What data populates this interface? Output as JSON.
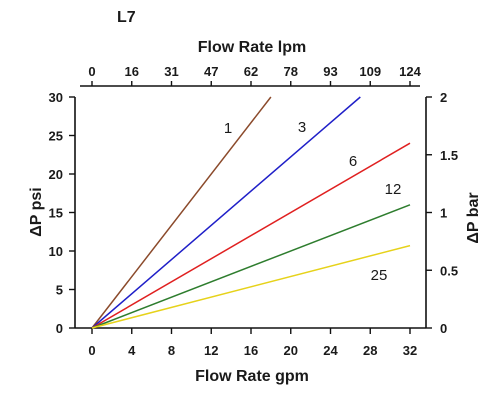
{
  "chart_data": {
    "type": "line",
    "title": "L7",
    "xlabel": "Flow Rate gpm",
    "ylabel": "ΔP psi",
    "x2label": "Flow Rate lpm",
    "y2label": "ΔP bar",
    "xlim": [
      0,
      32
    ],
    "ylim": [
      0,
      30
    ],
    "x2lim": [
      0,
      124
    ],
    "y2lim": [
      0,
      2.05
    ],
    "xticks": [
      "0",
      "4",
      "8",
      "12",
      "16",
      "20",
      "24",
      "28",
      "32"
    ],
    "yticks": [
      "0",
      "5",
      "10",
      "15",
      "20",
      "25",
      "30"
    ],
    "x2ticks": [
      "0",
      "16",
      "31",
      "47",
      "62",
      "78",
      "93",
      "109",
      "124"
    ],
    "y2ticks": [
      "0",
      "0.5",
      "1",
      "1.5",
      "2"
    ],
    "grid": false,
    "series": [
      {
        "name": "1",
        "color": "#8b4a2b",
        "x": [
          0,
          18
        ],
        "y": [
          0,
          30
        ]
      },
      {
        "name": "3",
        "color": "#1f1fc8",
        "x": [
          0,
          27
        ],
        "y": [
          0,
          30
        ]
      },
      {
        "name": "6",
        "color": "#e02020",
        "x": [
          0,
          32
        ],
        "y": [
          0,
          24
        ]
      },
      {
        "name": "12",
        "color": "#2e7d2e",
        "x": [
          0,
          32
        ],
        "y": [
          0,
          16
        ]
      },
      {
        "name": "25",
        "color": "#e6d21a",
        "x": [
          0,
          32
        ],
        "y": [
          0,
          10.7
        ]
      }
    ]
  }
}
